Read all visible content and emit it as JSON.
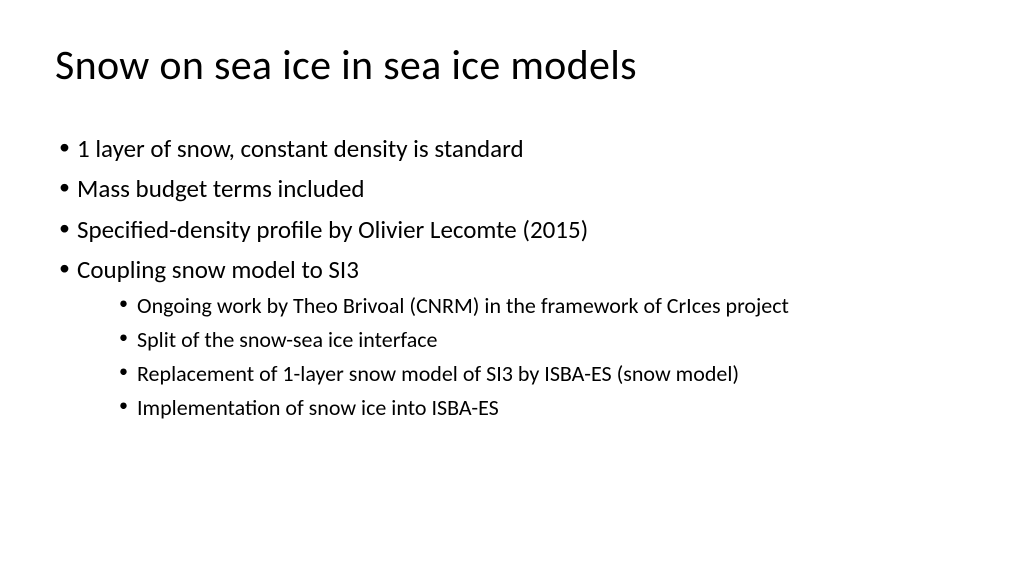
{
  "slide": {
    "title": "Snow on sea ice in sea ice models",
    "bullets": [
      {
        "text": "1 layer of snow, constant density is standard"
      },
      {
        "text": "Mass budget terms included"
      },
      {
        "text": "Specified-density profile by Olivier Lecomte (2015)"
      },
      {
        "text": "Coupling snow model to SI3",
        "sub": [
          "Ongoing work by Theo Brivoal (CNRM) in the framework of CrIces project",
          "Split of the snow-sea ice interface",
          "Replacement of 1-layer snow model of SI3 by ISBA-ES (snow model)",
          "Implementation of snow ice into ISBA-ES"
        ]
      }
    ],
    "styling": {
      "background_color": "#ffffff",
      "text_color": "#000000",
      "title_fontsize": 42,
      "bullet_fontsize": 25,
      "sub_bullet_fontsize": 22,
      "font_family": "Calibri"
    }
  }
}
